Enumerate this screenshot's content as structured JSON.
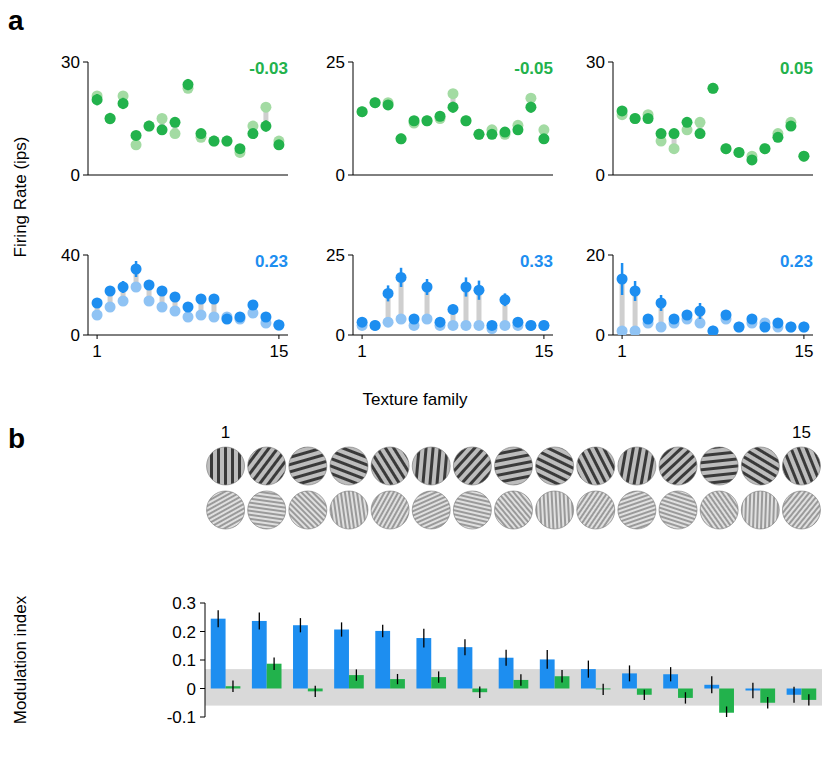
{
  "chart_data": [
    {
      "type": "scatter",
      "label": "a",
      "ylabel": "Firing Rate (ips)",
      "annotation": "-0.03",
      "x": [
        1,
        2,
        3,
        4,
        5,
        6,
        7,
        8,
        9,
        10,
        11,
        12,
        13,
        14,
        15
      ],
      "xlim": [
        0.3,
        15.7
      ],
      "ylim": [
        0,
        30
      ],
      "yticks": [
        0,
        30
      ],
      "tick_labels": "y",
      "series": [
        {
          "color": "#a3dba3",
          "values": [
            21,
            15,
            21,
            8,
            13,
            15,
            11,
            23,
            10,
            9,
            9,
            6,
            13,
            18,
            9
          ]
        },
        {
          "color": "#22b24c",
          "values": [
            20,
            15,
            19,
            10.5,
            13,
            12,
            14,
            24,
            11,
            9,
            9,
            7,
            11,
            13,
            8
          ],
          "errors": [
            1.5,
            1.5,
            1.5,
            1,
            1,
            1,
            1,
            1.5,
            1,
            1,
            1,
            1,
            1,
            1.5,
            1
          ]
        }
      ]
    },
    {
      "type": "scatter",
      "annotation": "-0.05",
      "x": [
        1,
        2,
        3,
        4,
        5,
        6,
        7,
        8,
        9,
        10,
        11,
        12,
        13,
        14,
        15
      ],
      "xlim": [
        0.3,
        15.7
      ],
      "ylim": [
        0,
        25
      ],
      "yticks": [
        0,
        25
      ],
      "tick_labels": "y",
      "series": [
        {
          "color": "#a3dba3",
          "values": [
            14,
            16,
            16,
            8,
            11.5,
            12,
            12.5,
            18,
            12,
            9,
            10,
            9,
            11,
            17,
            10
          ]
        },
        {
          "color": "#22b24c",
          "values": [
            14,
            16,
            15.5,
            8,
            12,
            12,
            13,
            15,
            12,
            9,
            9,
            9.5,
            10,
            15,
            8
          ],
          "errors": [
            1,
            1,
            1,
            0.8,
            1,
            1,
            1,
            1.2,
            1,
            0.8,
            0.8,
            0.8,
            1,
            1.2,
            0.8
          ]
        }
      ]
    },
    {
      "type": "scatter",
      "annotation": "0.05",
      "x": [
        1,
        2,
        3,
        4,
        5,
        6,
        7,
        8,
        9,
        10,
        11,
        12,
        13,
        14,
        15
      ],
      "xlim": [
        0.3,
        15.7
      ],
      "ylim": [
        0,
        30
      ],
      "yticks": [
        0,
        30
      ],
      "tick_labels": "y",
      "series": [
        {
          "color": "#a3dba3",
          "values": [
            16,
            15,
            16,
            9,
            7,
            12,
            14,
            23,
            7,
            6,
            5,
            7,
            11,
            14,
            5
          ]
        },
        {
          "color": "#22b24c",
          "values": [
            17,
            15,
            15,
            11,
            11,
            14,
            11,
            23,
            7,
            6,
            4,
            7,
            10,
            13,
            5
          ],
          "errors": [
            1,
            1,
            1,
            1,
            1,
            1,
            1,
            1.2,
            0.8,
            0.8,
            0.8,
            0.8,
            1,
            1,
            0.8
          ]
        }
      ]
    },
    {
      "type": "scatter",
      "annotation": "0.23",
      "x": [
        1,
        2,
        3,
        4,
        5,
        6,
        7,
        8,
        9,
        10,
        11,
        12,
        13,
        14,
        15
      ],
      "xlim": [
        0.3,
        15.7
      ],
      "ylim": [
        0,
        40
      ],
      "yticks": [
        0,
        40
      ],
      "xticks": [
        1,
        15
      ],
      "series": [
        {
          "color": "#8fc3f4",
          "values": [
            10,
            14,
            17,
            24,
            17,
            14,
            12,
            9,
            10,
            9,
            9,
            8,
            11,
            6,
            5
          ]
        },
        {
          "color": "#1d8ef0",
          "values": [
            16,
            22,
            24,
            33,
            25,
            22,
            19,
            14,
            18,
            18,
            8,
            9,
            15,
            9,
            5
          ],
          "errors": [
            2,
            2.5,
            3,
            4,
            2.5,
            2,
            2,
            1.5,
            2.5,
            2,
            1,
            1,
            2,
            1,
            1
          ]
        }
      ]
    },
    {
      "type": "scatter",
      "annotation": "0.33",
      "xlabel": "Texture family",
      "x": [
        1,
        2,
        3,
        4,
        5,
        6,
        7,
        8,
        9,
        10,
        11,
        12,
        13,
        14,
        15
      ],
      "xlim": [
        0.3,
        15.7
      ],
      "ylim": [
        0,
        25
      ],
      "yticks": [
        0,
        25
      ],
      "xticks": [
        1,
        15
      ],
      "series": [
        {
          "color": "#8fc3f4",
          "values": [
            3,
            3,
            4,
            5,
            3,
            5,
            3,
            3,
            3,
            3,
            2,
            3,
            3,
            3,
            3
          ]
        },
        {
          "color": "#1d8ef0",
          "values": [
            4,
            3,
            13,
            18,
            5,
            15,
            4,
            8,
            15,
            14,
            3,
            11,
            4,
            3,
            3
          ],
          "errors": [
            1,
            0.5,
            2.5,
            3,
            1,
            2.5,
            0.5,
            1.5,
            3,
            3,
            0.5,
            2,
            0.5,
            0.5,
            0.5
          ]
        }
      ]
    },
    {
      "type": "scatter",
      "annotation": "0.23",
      "x": [
        1,
        2,
        3,
        4,
        5,
        6,
        7,
        8,
        9,
        10,
        11,
        12,
        13,
        14,
        15
      ],
      "xlim": [
        0.3,
        15.7
      ],
      "ylim": [
        0,
        20
      ],
      "yticks": [
        0,
        20
      ],
      "xticks": [
        1,
        15
      ],
      "series": [
        {
          "color": "#8fc3f4",
          "values": [
            1,
            1,
            3,
            2,
            3,
            4,
            3,
            1,
            4,
            2,
            3,
            3,
            2,
            2,
            2
          ]
        },
        {
          "color": "#1d8ef0",
          "values": [
            14,
            11,
            4,
            8,
            4,
            5,
            6,
            1,
            5,
            2,
            4,
            2,
            3,
            2,
            2
          ],
          "errors": [
            4,
            2.5,
            1,
            2,
            1,
            1,
            2,
            0.5,
            1,
            0.5,
            1,
            0.5,
            1,
            0.5,
            0.5
          ]
        }
      ]
    },
    {
      "type": "bar",
      "label": "b",
      "ylabel": "Modulation index",
      "categories": [
        "1",
        null,
        null,
        null,
        null,
        null,
        null,
        null,
        null,
        null,
        null,
        null,
        null,
        null,
        "15"
      ],
      "ylim": [
        -0.1,
        0.3
      ],
      "yticks": [
        -0.1,
        0,
        0.1,
        0.2,
        0.3
      ],
      "band": [
        -0.06,
        0.068
      ],
      "series": [
        {
          "color": "#1d8ef0",
          "values": [
            0.245,
            0.237,
            0.222,
            0.207,
            0.202,
            0.177,
            0.145,
            0.108,
            0.102,
            0.068,
            0.053,
            0.05,
            0.013,
            -0.007,
            -0.022
          ],
          "errors": [
            0.03,
            0.03,
            0.025,
            0.025,
            0.022,
            0.033,
            0.028,
            0.028,
            0.033,
            0.03,
            0.028,
            0.025,
            0.03,
            0.027,
            0.028
          ]
        },
        {
          "color": "#22b24c",
          "values": [
            0.008,
            0.087,
            -0.01,
            0.047,
            0.033,
            0.04,
            -0.013,
            0.03,
            0.043,
            -0.003,
            -0.022,
            -0.033,
            -0.085,
            -0.05,
            -0.04
          ],
          "errors": [
            0.02,
            0.022,
            0.02,
            0.02,
            0.018,
            0.02,
            0.02,
            0.02,
            0.022,
            0.02,
            0.018,
            0.02,
            0.022,
            0.02,
            0.02
          ]
        }
      ]
    }
  ]
}
